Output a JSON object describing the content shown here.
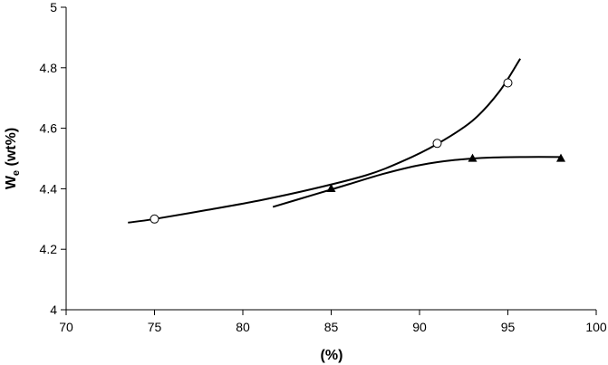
{
  "chart_data": {
    "type": "scatter",
    "title": "",
    "xlabel": "(%)",
    "ylabel": "W",
    "ylabel_subscript": "e",
    "ylabel_unit": " (wt%)",
    "xlim": [
      70,
      100
    ],
    "ylim": [
      4,
      5
    ],
    "xticks": [
      70,
      75,
      80,
      85,
      90,
      95,
      100
    ],
    "yticks": [
      4,
      4.2,
      4.4,
      4.6,
      4.8,
      5
    ],
    "ytick_labels": [
      "4",
      "4.2",
      "4.4",
      "4.6",
      "4.8",
      "5"
    ],
    "grid": false,
    "legend": "none",
    "series": [
      {
        "marker": "open-circle",
        "color": "#000000",
        "points": [
          {
            "x": 75,
            "y": 4.3
          },
          {
            "x": 91,
            "y": 4.55
          },
          {
            "x": 95,
            "y": 4.75
          }
        ],
        "trend": [
          {
            "x": 73.5,
            "y": 4.288
          },
          {
            "x": 75,
            "y": 4.3
          },
          {
            "x": 78,
            "y": 4.33
          },
          {
            "x": 81,
            "y": 4.362
          },
          {
            "x": 84,
            "y": 4.4
          },
          {
            "x": 87,
            "y": 4.445
          },
          {
            "x": 89,
            "y": 4.49
          },
          {
            "x": 91,
            "y": 4.548
          },
          {
            "x": 93,
            "y": 4.625
          },
          {
            "x": 94.5,
            "y": 4.72
          },
          {
            "x": 95.7,
            "y": 4.83
          }
        ]
      },
      {
        "marker": "filled-triangle",
        "color": "#000000",
        "points": [
          {
            "x": 85,
            "y": 4.4
          },
          {
            "x": 93,
            "y": 4.5
          },
          {
            "x": 98,
            "y": 4.5
          }
        ],
        "trend": [
          {
            "x": 81.7,
            "y": 4.34
          },
          {
            "x": 84,
            "y": 4.38
          },
          {
            "x": 86,
            "y": 4.415
          },
          {
            "x": 88,
            "y": 4.45
          },
          {
            "x": 90,
            "y": 4.478
          },
          {
            "x": 92,
            "y": 4.495
          },
          {
            "x": 94,
            "y": 4.503
          },
          {
            "x": 96,
            "y": 4.505
          },
          {
            "x": 98,
            "y": 4.505
          }
        ]
      }
    ]
  }
}
